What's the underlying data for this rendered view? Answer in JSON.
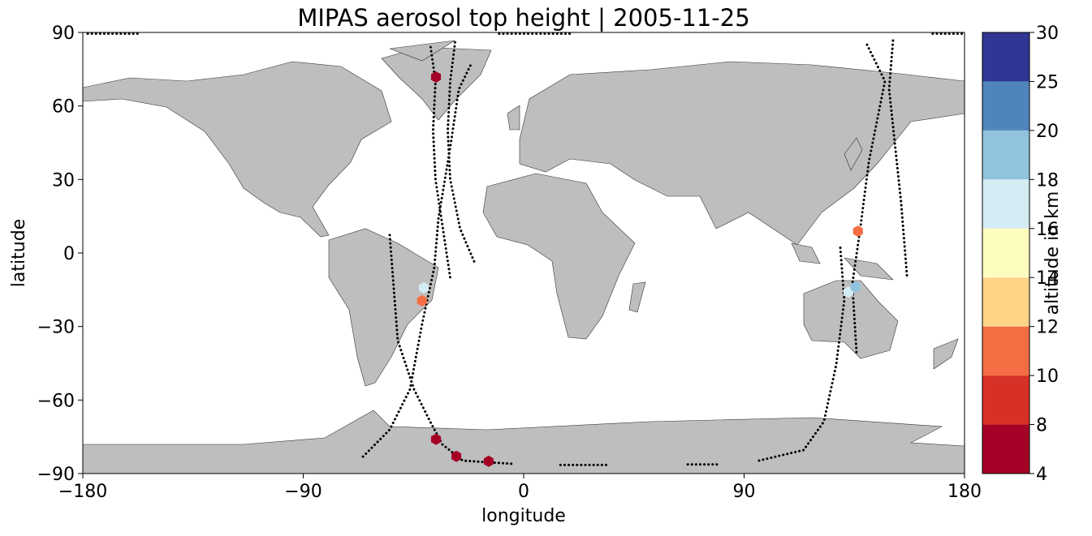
{
  "chart_data": {
    "type": "scatter",
    "title": "MIPAS aerosol top height | 2005-11-25",
    "xlabel": "longitude",
    "ylabel": "latitude",
    "xlim": [
      -180,
      180
    ],
    "ylim": [
      -90,
      90
    ],
    "xticks": [
      {
        "value": -180,
        "label": "−180"
      },
      {
        "value": -90,
        "label": "−90"
      },
      0,
      90,
      180
    ],
    "yticks": [
      {
        "value": -90,
        "label": "−90"
      },
      {
        "value": -60,
        "label": "−60"
      },
      {
        "value": -30,
        "label": "−30"
      },
      0,
      30,
      60,
      90
    ],
    "x": [
      -35.8,
      -40.8,
      -41.5,
      -35.8,
      -27.5,
      -14.3,
      136.5,
      132.6,
      135.5
    ],
    "y": [
      71.8,
      -14.2,
      -19.5,
      -76.0,
      -83.0,
      -85.0,
      8.9,
      -15.9,
      -13.9
    ],
    "values": [
      6,
      17,
      11,
      7,
      6,
      6,
      11,
      17,
      19
    ],
    "tracks": [
      {
        "x": [
          -38,
          -36,
          -37,
          -36,
          -33,
          -30
        ],
        "y": [
          84,
          70,
          50,
          30,
          10,
          -10
        ]
      },
      {
        "x": [
          -28,
          -30,
          -31,
          -30,
          -26,
          -20
        ],
        "y": [
          86,
          70,
          50,
          30,
          10,
          -4
        ]
      },
      {
        "x": [
          -54.7,
          -51.4,
          -44.8,
          -38.2,
          -33.2,
          -24.9,
          -5
        ],
        "y": [
          7.3,
          -35.7,
          -55.6,
          -68.8,
          -78.1,
          -84.7,
          -86
        ]
      },
      {
        "x": [
          -65.6,
          -54.7,
          -46.4,
          -41.5,
          -36.5,
          -34.8,
          -29.9,
          -26.5,
          -21.6
        ],
        "y": [
          -83.1,
          -72.1,
          -55.6,
          -29.1,
          -6,
          14,
          43.7,
          66.8,
          76.8
        ]
      },
      {
        "x": [
          140.2,
          147.5,
          140.9,
          137.5,
          134.2,
          135.9
        ],
        "y": [
          85,
          70.1,
          37,
          10.6,
          -12.6,
          -40.7
        ]
      },
      {
        "x": [
          150.8,
          149.2,
          154.1,
          156.5
        ],
        "y": [
          86.7,
          66.8,
          20.5,
          -9.3
        ]
      },
      {
        "x": [
          96.1,
          114.3,
          122.6,
          127.6,
          130.9,
          129.2
        ],
        "y": [
          -84.7,
          -80.4,
          -68.8,
          -45.7,
          -19.2,
          3
        ]
      },
      {
        "x": [
          -178,
          -157
        ],
        "y": [
          89.5,
          89.5
        ]
      },
      {
        "x": [
          -10,
          20
        ],
        "y": [
          89.5,
          89.5
        ]
      },
      {
        "x": [
          167,
          179
        ],
        "y": [
          89.5,
          89.5
        ]
      },
      {
        "x": [
          15,
          35
        ],
        "y": [
          -86.5,
          -86.5
        ]
      },
      {
        "x": [
          67,
          80
        ],
        "y": [
          -86.3,
          -86.3
        ]
      }
    ],
    "colorbar": {
      "label": "altitude in km",
      "boundaries": [
        4,
        8,
        10,
        12,
        14,
        16,
        18,
        20,
        25,
        30
      ],
      "colors": [
        "#a50026",
        "#d73027",
        "#f46d43",
        "#fdd385",
        "#fefdc0",
        "#d4ecf3",
        "#91c3dd",
        "#4f85bb",
        "#313695"
      ]
    }
  }
}
